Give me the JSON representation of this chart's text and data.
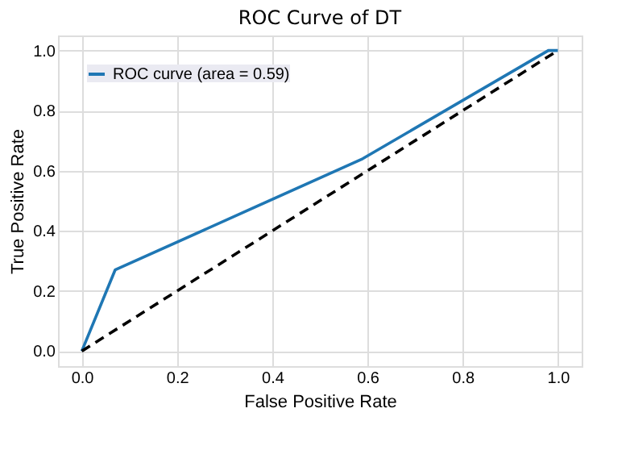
{
  "chart_data": {
    "type": "line",
    "title": "ROC Curve of DT",
    "xlabel": "False Positive Rate",
    "ylabel": "True Positive Rate",
    "xlim": [
      -0.05,
      1.05
    ],
    "ylim": [
      -0.05,
      1.05
    ],
    "xticks": [
      {
        "value": 0,
        "label": "0.0"
      },
      0.2,
      0.4,
      0.6,
      0.8,
      {
        "value": 1,
        "label": "1.0"
      }
    ],
    "yticks": [
      {
        "value": 0,
        "label": "0.0"
      },
      0.2,
      0.4,
      0.6,
      0.8,
      {
        "value": 1,
        "label": "1.0"
      }
    ],
    "grid": true,
    "legend": "top left",
    "marker": "none",
    "series": [
      {
        "name": "ROC curve (area = 0.59)",
        "color": "#1f77b4",
        "line_style": "solid",
        "x": [
          0,
          0.07,
          0.59,
          0.98,
          1.0
        ],
        "values": [
          0,
          0.27,
          0.64,
          1.0,
          1.0
        ]
      },
      {
        "color": "#000000",
        "line_style": "dashed",
        "x": [
          0,
          1
        ],
        "values": [
          0,
          1
        ]
      }
    ]
  }
}
